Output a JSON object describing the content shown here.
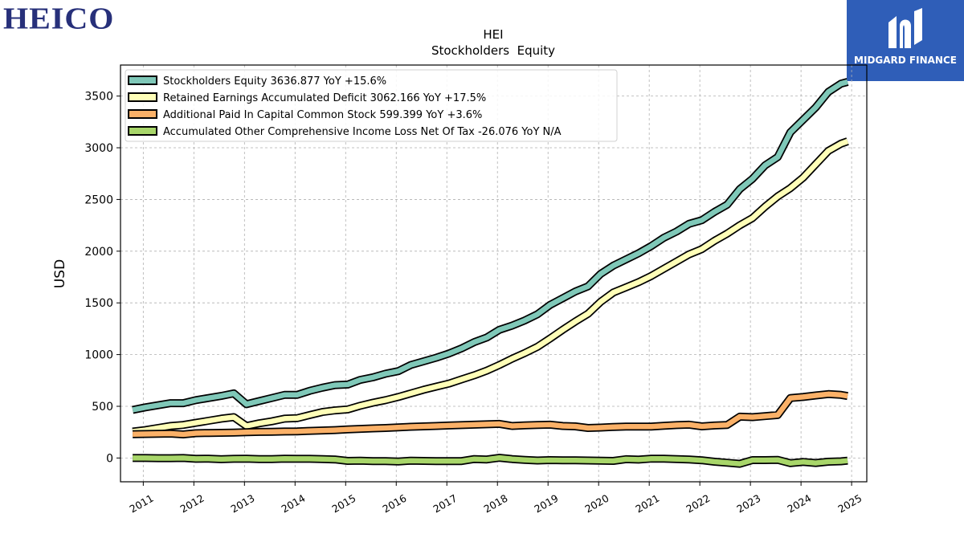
{
  "logos": {
    "left_text": "HEICO",
    "right_text": "MIDGARD FINANCE"
  },
  "colors": {
    "stockholders_equity": "#7fc8b8",
    "retained_earnings": "#ffffb8",
    "apic": "#fbb168",
    "aoci": "#a8d66a",
    "logo_left": "#27307a",
    "logo_right_bg": "#2f5eb8"
  },
  "chart_data": {
    "type": "line",
    "title": "HEI",
    "subtitle": "Stockholders  Equity",
    "xlabel": "",
    "ylabel": "USD",
    "xlim": [
      2010.55,
      2025.3
    ],
    "ylim": [
      -230,
      3800
    ],
    "yticks": [
      0,
      500,
      1000,
      1500,
      2000,
      2500,
      3000,
      3500
    ],
    "xticks": [
      2011,
      2012,
      2013,
      2014,
      2015,
      2016,
      2017,
      2018,
      2019,
      2020,
      2021,
      2022,
      2023,
      2024,
      2025
    ],
    "grid": true,
    "legend_position": "top-left",
    "x": [
      2010.79,
      2011.04,
      2011.29,
      2011.54,
      2011.79,
      2012.04,
      2012.29,
      2012.54,
      2012.79,
      2013.04,
      2013.29,
      2013.54,
      2013.79,
      2014.04,
      2014.29,
      2014.54,
      2014.79,
      2015.04,
      2015.29,
      2015.54,
      2015.79,
      2016.04,
      2016.29,
      2016.54,
      2016.79,
      2017.04,
      2017.29,
      2017.54,
      2017.79,
      2018.04,
      2018.29,
      2018.54,
      2018.79,
      2019.04,
      2019.29,
      2019.54,
      2019.79,
      2020.04,
      2020.29,
      2020.54,
      2020.79,
      2021.04,
      2021.29,
      2021.54,
      2021.79,
      2022.04,
      2022.29,
      2022.54,
      2022.79,
      2023.04,
      2023.29,
      2023.54,
      2023.79,
      2024.04,
      2024.29,
      2024.54,
      2024.79,
      2024.92
    ],
    "series": [
      {
        "name": "Stockholders Equity  3636.877 YoY +15.6%",
        "color_key": "stockholders_equity",
        "values": [
          465,
          490,
          510,
          530,
          530,
          560,
          580,
          600,
          625,
          520,
          550,
          580,
          610,
          610,
          650,
          680,
          705,
          710,
          755,
          780,
          815,
          840,
          900,
          935,
          970,
          1010,
          1060,
          1120,
          1165,
          1240,
          1280,
          1330,
          1390,
          1480,
          1545,
          1610,
          1660,
          1780,
          1860,
          1920,
          1980,
          2050,
          2130,
          2190,
          2265,
          2300,
          2380,
          2450,
          2600,
          2700,
          2830,
          2910,
          3150,
          3270,
          3390,
          3540,
          3620,
          3637
        ]
      },
      {
        "name": "Retained Earnings Accumulated Deficit  3062.166 YoY +17.5%",
        "color_key": "retained_earnings",
        "values": [
          255,
          270,
          290,
          310,
          320,
          340,
          360,
          380,
          395,
          310,
          335,
          355,
          380,
          385,
          415,
          445,
          460,
          470,
          505,
          535,
          560,
          590,
          625,
          660,
          690,
          720,
          760,
          800,
          845,
          900,
          960,
          1015,
          1075,
          1155,
          1240,
          1320,
          1395,
          1510,
          1600,
          1650,
          1700,
          1760,
          1830,
          1900,
          1970,
          2020,
          2100,
          2170,
          2250,
          2320,
          2430,
          2530,
          2610,
          2710,
          2840,
          2970,
          3040,
          3062
        ]
      },
      {
        "name": "Additional Paid In Capital Common Stock  599.399 YoY +3.6%",
        "color_key": "apic",
        "values": [
          230,
          232,
          234,
          236,
          228,
          240,
          242,
          244,
          246,
          250,
          252,
          254,
          256,
          258,
          262,
          266,
          270,
          276,
          282,
          286,
          290,
          296,
          302,
          306,
          310,
          314,
          318,
          322,
          326,
          330,
          310,
          316,
          320,
          322,
          310,
          306,
          290,
          294,
          300,
          304,
          304,
          304,
          312,
          318,
          322,
          306,
          314,
          320,
          400,
          395,
          405,
          415,
          580,
          590,
          605,
          618,
          610,
          599
        ]
      },
      {
        "name": "Accumulated Other Comprehensive Income Loss Net Of Tax  -26.076 YoY N/A",
        "color_key": "aoci",
        "values": [
          0,
          0,
          -2,
          -2,
          0,
          -8,
          -6,
          -12,
          -8,
          -6,
          -10,
          -10,
          -6,
          -8,
          -8,
          -10,
          -14,
          -28,
          -26,
          -30,
          -30,
          -34,
          -26,
          -28,
          -30,
          -30,
          -30,
          -10,
          -14,
          2,
          -10,
          -18,
          -24,
          -20,
          -22,
          -22,
          -24,
          -26,
          -28,
          -12,
          -16,
          -6,
          -6,
          -10,
          -14,
          -22,
          -36,
          -46,
          -56,
          -20,
          -20,
          -18,
          -50,
          -38,
          -48,
          -36,
          -32,
          -26
        ]
      }
    ]
  }
}
